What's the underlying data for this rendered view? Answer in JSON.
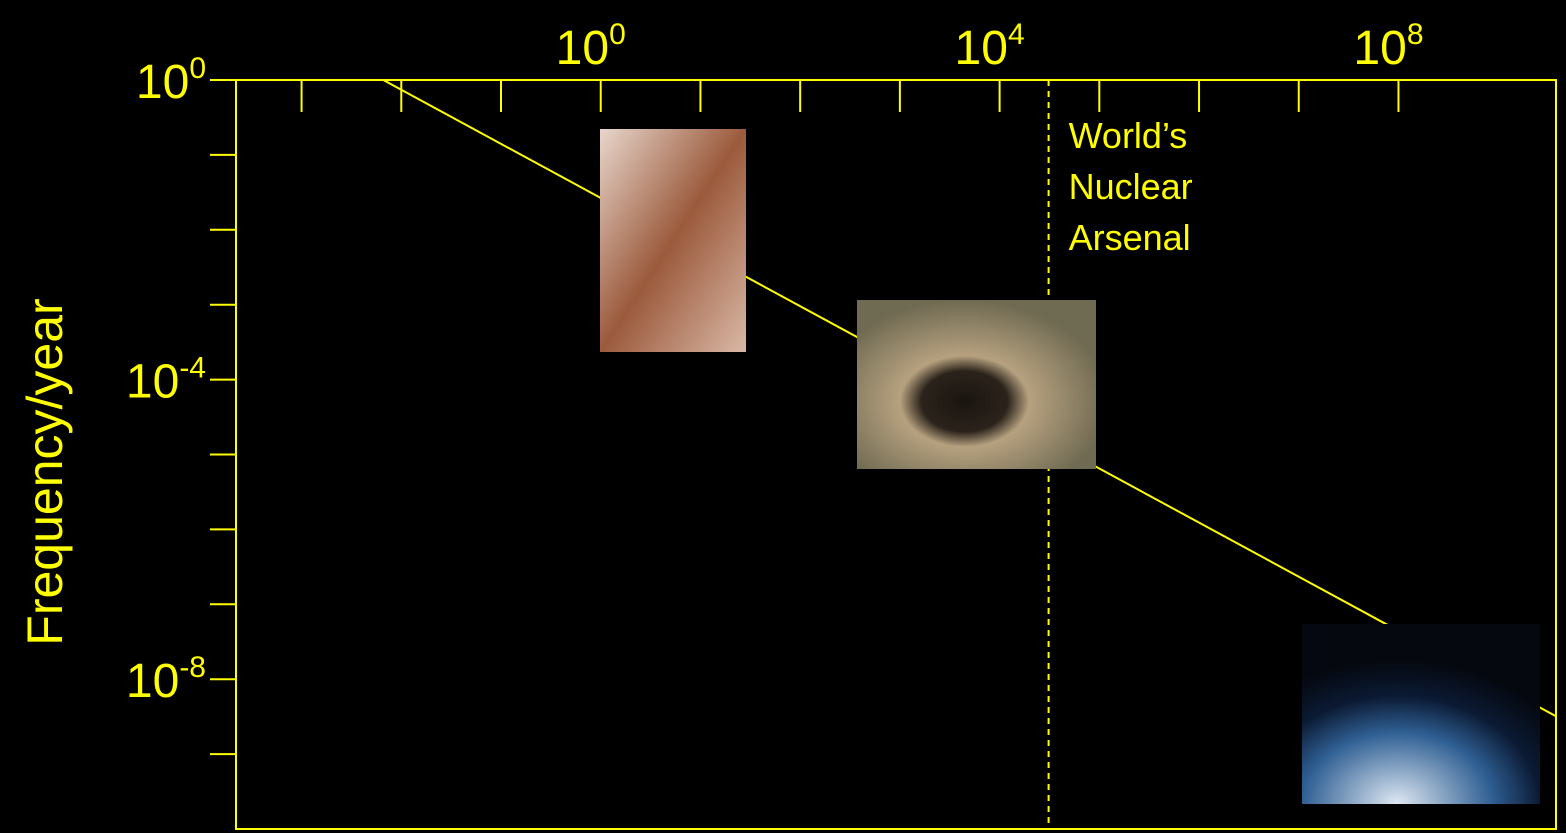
{
  "chart_data": {
    "type": "line",
    "y_label": "Frequency/year",
    "log_x": true,
    "log_y": true,
    "color": "#ffff00",
    "xlim": [
      0.00022,
      3800000000
    ],
    "ylim": [
      1e-10,
      1
    ],
    "xticks": [
      {
        "value": 1,
        "label": "10",
        "sup": "0"
      },
      {
        "value": 10000,
        "label": "10",
        "sup": "4"
      },
      {
        "value": 100000000,
        "label": "10",
        "sup": "8"
      }
    ],
    "xminor_ticks": [
      0.001,
      0.01,
      0.1,
      10,
      100,
      1000,
      100000,
      1000000,
      10000000
    ],
    "yticks": [
      {
        "value": 1,
        "label": "10",
        "sup": "0"
      },
      {
        "value": 0.0001,
        "label": "10",
        "sup": "-4"
      },
      {
        "value": 1e-08,
        "label": "10",
        "sup": "-8"
      }
    ],
    "yminor_ticks": [
      0.1,
      0.01,
      0.001,
      1e-05,
      1e-06,
      1e-07,
      1e-09
    ],
    "x": [
      0.0066,
      3800000000
    ],
    "values": [
      1,
      3.2e-09
    ],
    "reference_line": {
      "x": 31000,
      "label": [
        "World’s",
        "Nuclear",
        "Arsenal"
      ]
    }
  }
}
